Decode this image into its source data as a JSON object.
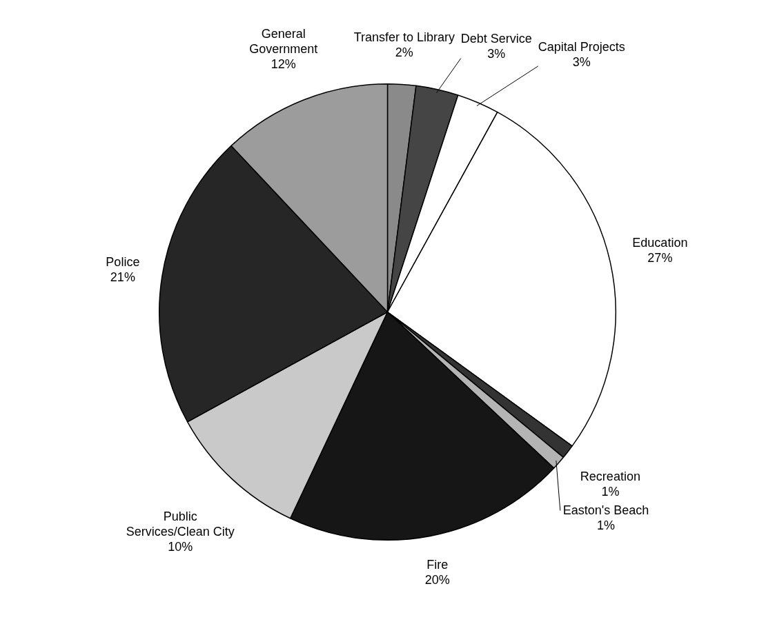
{
  "chart_data": {
    "type": "pie",
    "categories": [
      "Transfer to Library",
      "Debt Service",
      "Capital Projects",
      "Education",
      "Recreation",
      "Easton's Beach",
      "Fire",
      "Public Services/Clean City",
      "Police",
      "General Government"
    ],
    "values": [
      2,
      3,
      3,
      27,
      1,
      1,
      20,
      10,
      21,
      12
    ],
    "colors": [
      "#8a8a8a",
      "#454545",
      "#ffffff",
      "#ffffff",
      "#333333",
      "#b4b4b4",
      "#161616",
      "#c9c9c9",
      "#262626",
      "#9c9c9c"
    ],
    "value_labels": [
      "2%",
      "3%",
      "3%",
      "27%",
      "1%",
      "1%",
      "20%",
      "10%",
      "21%",
      "12%"
    ],
    "legend": false
  }
}
